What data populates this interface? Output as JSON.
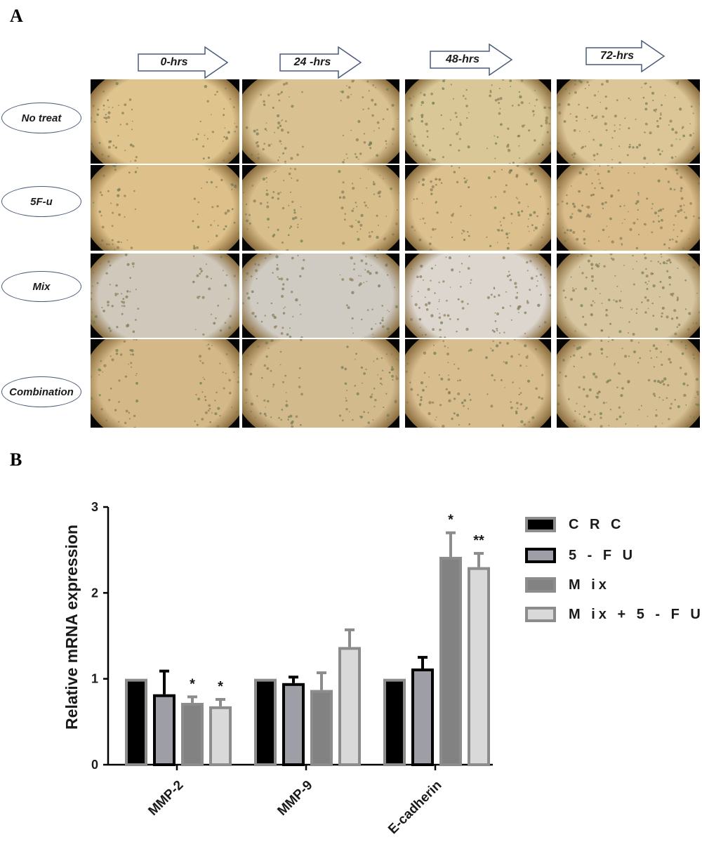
{
  "panel_a": {
    "letter": "A",
    "time_points": [
      "0-hrs",
      "24 -hrs",
      "48-hrs",
      "72-hrs"
    ],
    "treatments": [
      "No treat",
      "5F-u",
      "Mix",
      "Combination"
    ]
  },
  "panel_b": {
    "letter": "B"
  },
  "colors": {
    "crc": "#000000",
    "fu": "#9e9ea6",
    "mix": "#828282",
    "mixfu": "#d9d9d9",
    "border": "#8c8c8c"
  },
  "chart_data": {
    "type": "bar",
    "ylabel": "Relative mRNA expression",
    "xlabel": "",
    "ylim": [
      0,
      3
    ],
    "yticks": [
      "0",
      "1",
      "2",
      "3"
    ],
    "categories": [
      "MMP-2",
      "MMP-9",
      "E-cadherin"
    ],
    "series": [
      {
        "name": "C R C",
        "values": [
          1.0,
          1.0,
          1.0
        ],
        "errors": [
          0,
          0,
          0
        ],
        "sig": [
          "",
          "",
          ""
        ]
      },
      {
        "name": "5 - F U",
        "values": [
          0.82,
          0.95,
          1.12
        ],
        "errors": [
          0.27,
          0.07,
          0.13
        ],
        "sig": [
          "",
          "",
          ""
        ]
      },
      {
        "name": "M ix",
        "values": [
          0.72,
          0.87,
          2.42
        ],
        "errors": [
          0.07,
          0.2,
          0.28
        ],
        "sig": [
          "*",
          "",
          "*"
        ]
      },
      {
        "name": "M ix + 5 - F U",
        "values": [
          0.68,
          1.37,
          2.3
        ],
        "errors": [
          0.08,
          0.2,
          0.16
        ],
        "sig": [
          "*",
          "",
          "**"
        ]
      }
    ]
  }
}
